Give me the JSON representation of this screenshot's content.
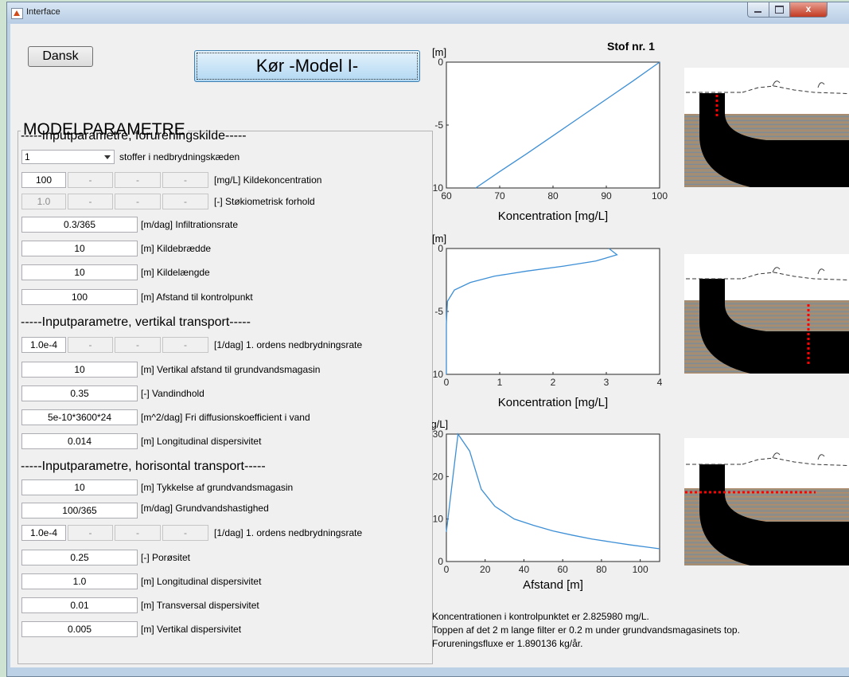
{
  "window": {
    "title": "Interface",
    "close_glyph": "x"
  },
  "buttons": {
    "language": "Dansk",
    "run": "Kør -Model I-"
  },
  "panel": {
    "title": "MODELPARAMETRE"
  },
  "section1": {
    "title": "-----Inputparametre, forureningskilde-----"
  },
  "section2": {
    "title": "-----Inputparametre, vertikal transport-----"
  },
  "section3": {
    "title": "-----Inputparametre, horisontal transport-----"
  },
  "params": {
    "substances": {
      "value": "1",
      "label": "stoffer i nedbrydningskæden"
    },
    "source_conc": {
      "value": "100",
      "dis": [
        "-",
        "-",
        "-"
      ],
      "label": "[mg/L] Kildekoncentration"
    },
    "stoich": {
      "value": "1.0",
      "dis": [
        "-",
        "-",
        "-"
      ],
      "label": "[-] Støkiometrisk forhold"
    },
    "infiltration": {
      "value": "0.3/365",
      "label": "[m/dag] Infiltrationsrate"
    },
    "source_width": {
      "value": "10",
      "label": "[m] Kildebrædde"
    },
    "source_length": {
      "value": "10",
      "label": "[m] Kildelængde"
    },
    "control_dist": {
      "value": "100",
      "label": "[m] Afstand til kontrolpunkt"
    },
    "v_decay": {
      "value": "1.0e-4",
      "dis": [
        "-",
        "-",
        "-"
      ],
      "label": "[1/dag] 1. ordens nedbrydningsrate"
    },
    "v_dist": {
      "value": "10",
      "label": "[m] Vertikal afstand til grundvandsmagasin"
    },
    "water_content": {
      "value": "0.35",
      "label": "[-] Vandindhold"
    },
    "diffusion": {
      "value": "5e-10*3600*24",
      "label": "[m^2/dag] Fri diffusionskoefficient i vand"
    },
    "v_long_disp": {
      "value": "0.014",
      "label": "[m] Longitudinal dispersivitet"
    },
    "aquifer_thick": {
      "value": "10",
      "label": "[m] Tykkelse af grundvandsmagasin"
    },
    "gw_velocity": {
      "value": "100/365",
      "label": "[m/dag] Grundvandshastighed"
    },
    "h_decay": {
      "value": "1.0e-4",
      "dis": [
        "-",
        "-",
        "-"
      ],
      "label": "[1/dag] 1. ordens nedbrydningsrate"
    },
    "porosity": {
      "value": "0.25",
      "label": "[-] Porøsitet"
    },
    "h_long_disp": {
      "value": "1.0",
      "label": "[m] Longitudinal dispersivitet"
    },
    "trans_disp": {
      "value": "0.01",
      "label": "[m] Transversal dispersivitet"
    },
    "vert_disp": {
      "value": "0.005",
      "label": "[m] Vertikal dispersivitet"
    }
  },
  "results": {
    "line1": "Koncentrationen i kontrolpunktet er 2.825980 mg/L.",
    "line2": "Toppen af det 2 m lange filter er 0.2 m under grundvandsmagasinets top.",
    "line3": "Forureningsfluxe er 1.890136 kg/år."
  },
  "chart_data": [
    {
      "type": "line",
      "title": "Stof nr. 1",
      "ylabel": "[m]",
      "xlabel": "Koncentration [mg/L]",
      "xlim": [
        60,
        100
      ],
      "ylim": [
        -10,
        0
      ],
      "xticks": [
        60,
        70,
        80,
        90,
        100
      ],
      "yticks": [
        0,
        -5,
        -10
      ],
      "series": [
        {
          "x": [
            65.5,
            70,
            75,
            80,
            85,
            90,
            95,
            100
          ],
          "y": [
            -10,
            -8.7,
            -7.3,
            -5.85,
            -4.4,
            -2.95,
            -1.5,
            0
          ]
        }
      ]
    },
    {
      "type": "line",
      "ylabel": "[m]",
      "xlabel": "Koncentration [mg/L]",
      "xlim": [
        0,
        4
      ],
      "ylim": [
        -10,
        0
      ],
      "xticks": [
        0,
        1,
        2,
        3,
        4
      ],
      "yticks": [
        0,
        -5,
        -10
      ],
      "series": [
        {
          "x": [
            3.05,
            3.2,
            2.8,
            2.2,
            1.5,
            0.9,
            0.45,
            0.15,
            0.02,
            0.0,
            0.0
          ],
          "y": [
            0,
            -0.5,
            -1.0,
            -1.4,
            -1.8,
            -2.2,
            -2.7,
            -3.3,
            -4.2,
            -6,
            -10
          ]
        }
      ]
    },
    {
      "type": "line",
      "ylabel": "[mg/L]",
      "xlabel": "Afstand [m]",
      "xlim": [
        0,
        110
      ],
      "ylim": [
        0,
        30
      ],
      "xticks": [
        0,
        20,
        40,
        60,
        80,
        100
      ],
      "yticks": [
        0,
        10,
        20,
        30
      ],
      "series": [
        {
          "x": [
            0,
            6,
            12,
            18,
            25,
            35,
            45,
            55,
            65,
            75,
            85,
            95,
            105,
            110
          ],
          "y": [
            7,
            30,
            26,
            17,
            13,
            10,
            8.5,
            7.2,
            6.2,
            5.3,
            4.6,
            3.9,
            3.3,
            3.0
          ]
        }
      ]
    }
  ],
  "colors": {
    "curve": "#3d8fd6",
    "marker": "#ff0000",
    "plume": "#000000"
  },
  "icons": {
    "app": "matlab-figure-icon",
    "minimize": "minimize-icon",
    "maximize": "maximize-icon",
    "close": "close-icon",
    "dropdown": "chevron-down-icon"
  }
}
